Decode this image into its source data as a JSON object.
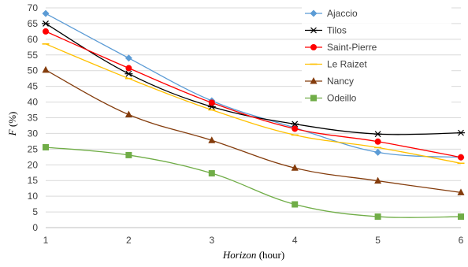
{
  "chart_data": {
    "type": "line",
    "title": "",
    "xlabel_italic": "Horizon",
    "xlabel_rest": " (hour)",
    "ylabel_italic": "F",
    "ylabel_rest": " (%)",
    "x": [
      1,
      2,
      3,
      4,
      5,
      6
    ],
    "xlim": [
      1,
      6
    ],
    "ylim": [
      0,
      70
    ],
    "yticks": [
      0,
      5,
      10,
      15,
      20,
      25,
      30,
      35,
      40,
      45,
      50,
      55,
      60,
      65,
      70
    ],
    "grid": "horizontal",
    "legend_position": "top-right",
    "series": [
      {
        "name": "Ajaccio",
        "values": [
          68.2,
          54.0,
          40.4,
          31.8,
          24.0,
          22.4
        ],
        "color": "#5B9BD5",
        "marker": "diamond"
      },
      {
        "name": "Tilos",
        "values": [
          65.0,
          49.0,
          38.5,
          33.0,
          29.8,
          30.2
        ],
        "color": "#000000",
        "marker": "asterisk"
      },
      {
        "name": "Saint-Pierre",
        "values": [
          62.5,
          50.8,
          39.8,
          31.5,
          27.4,
          22.4
        ],
        "color": "#FF0000",
        "marker": "circle"
      },
      {
        "name": "Le Raizet",
        "values": [
          58.5,
          47.5,
          37.5,
          29.5,
          25.5,
          20.5
        ],
        "color": "#FFC000",
        "marker": "dash"
      },
      {
        "name": "Nancy",
        "values": [
          50.2,
          36.0,
          27.8,
          19.0,
          14.9,
          11.2
        ],
        "color": "#843C0C",
        "marker": "triangle"
      },
      {
        "name": "Odeillo",
        "values": [
          25.6,
          23.1,
          17.3,
          7.4,
          3.5,
          3.5
        ],
        "color": "#70AD47",
        "marker": "square"
      }
    ]
  }
}
